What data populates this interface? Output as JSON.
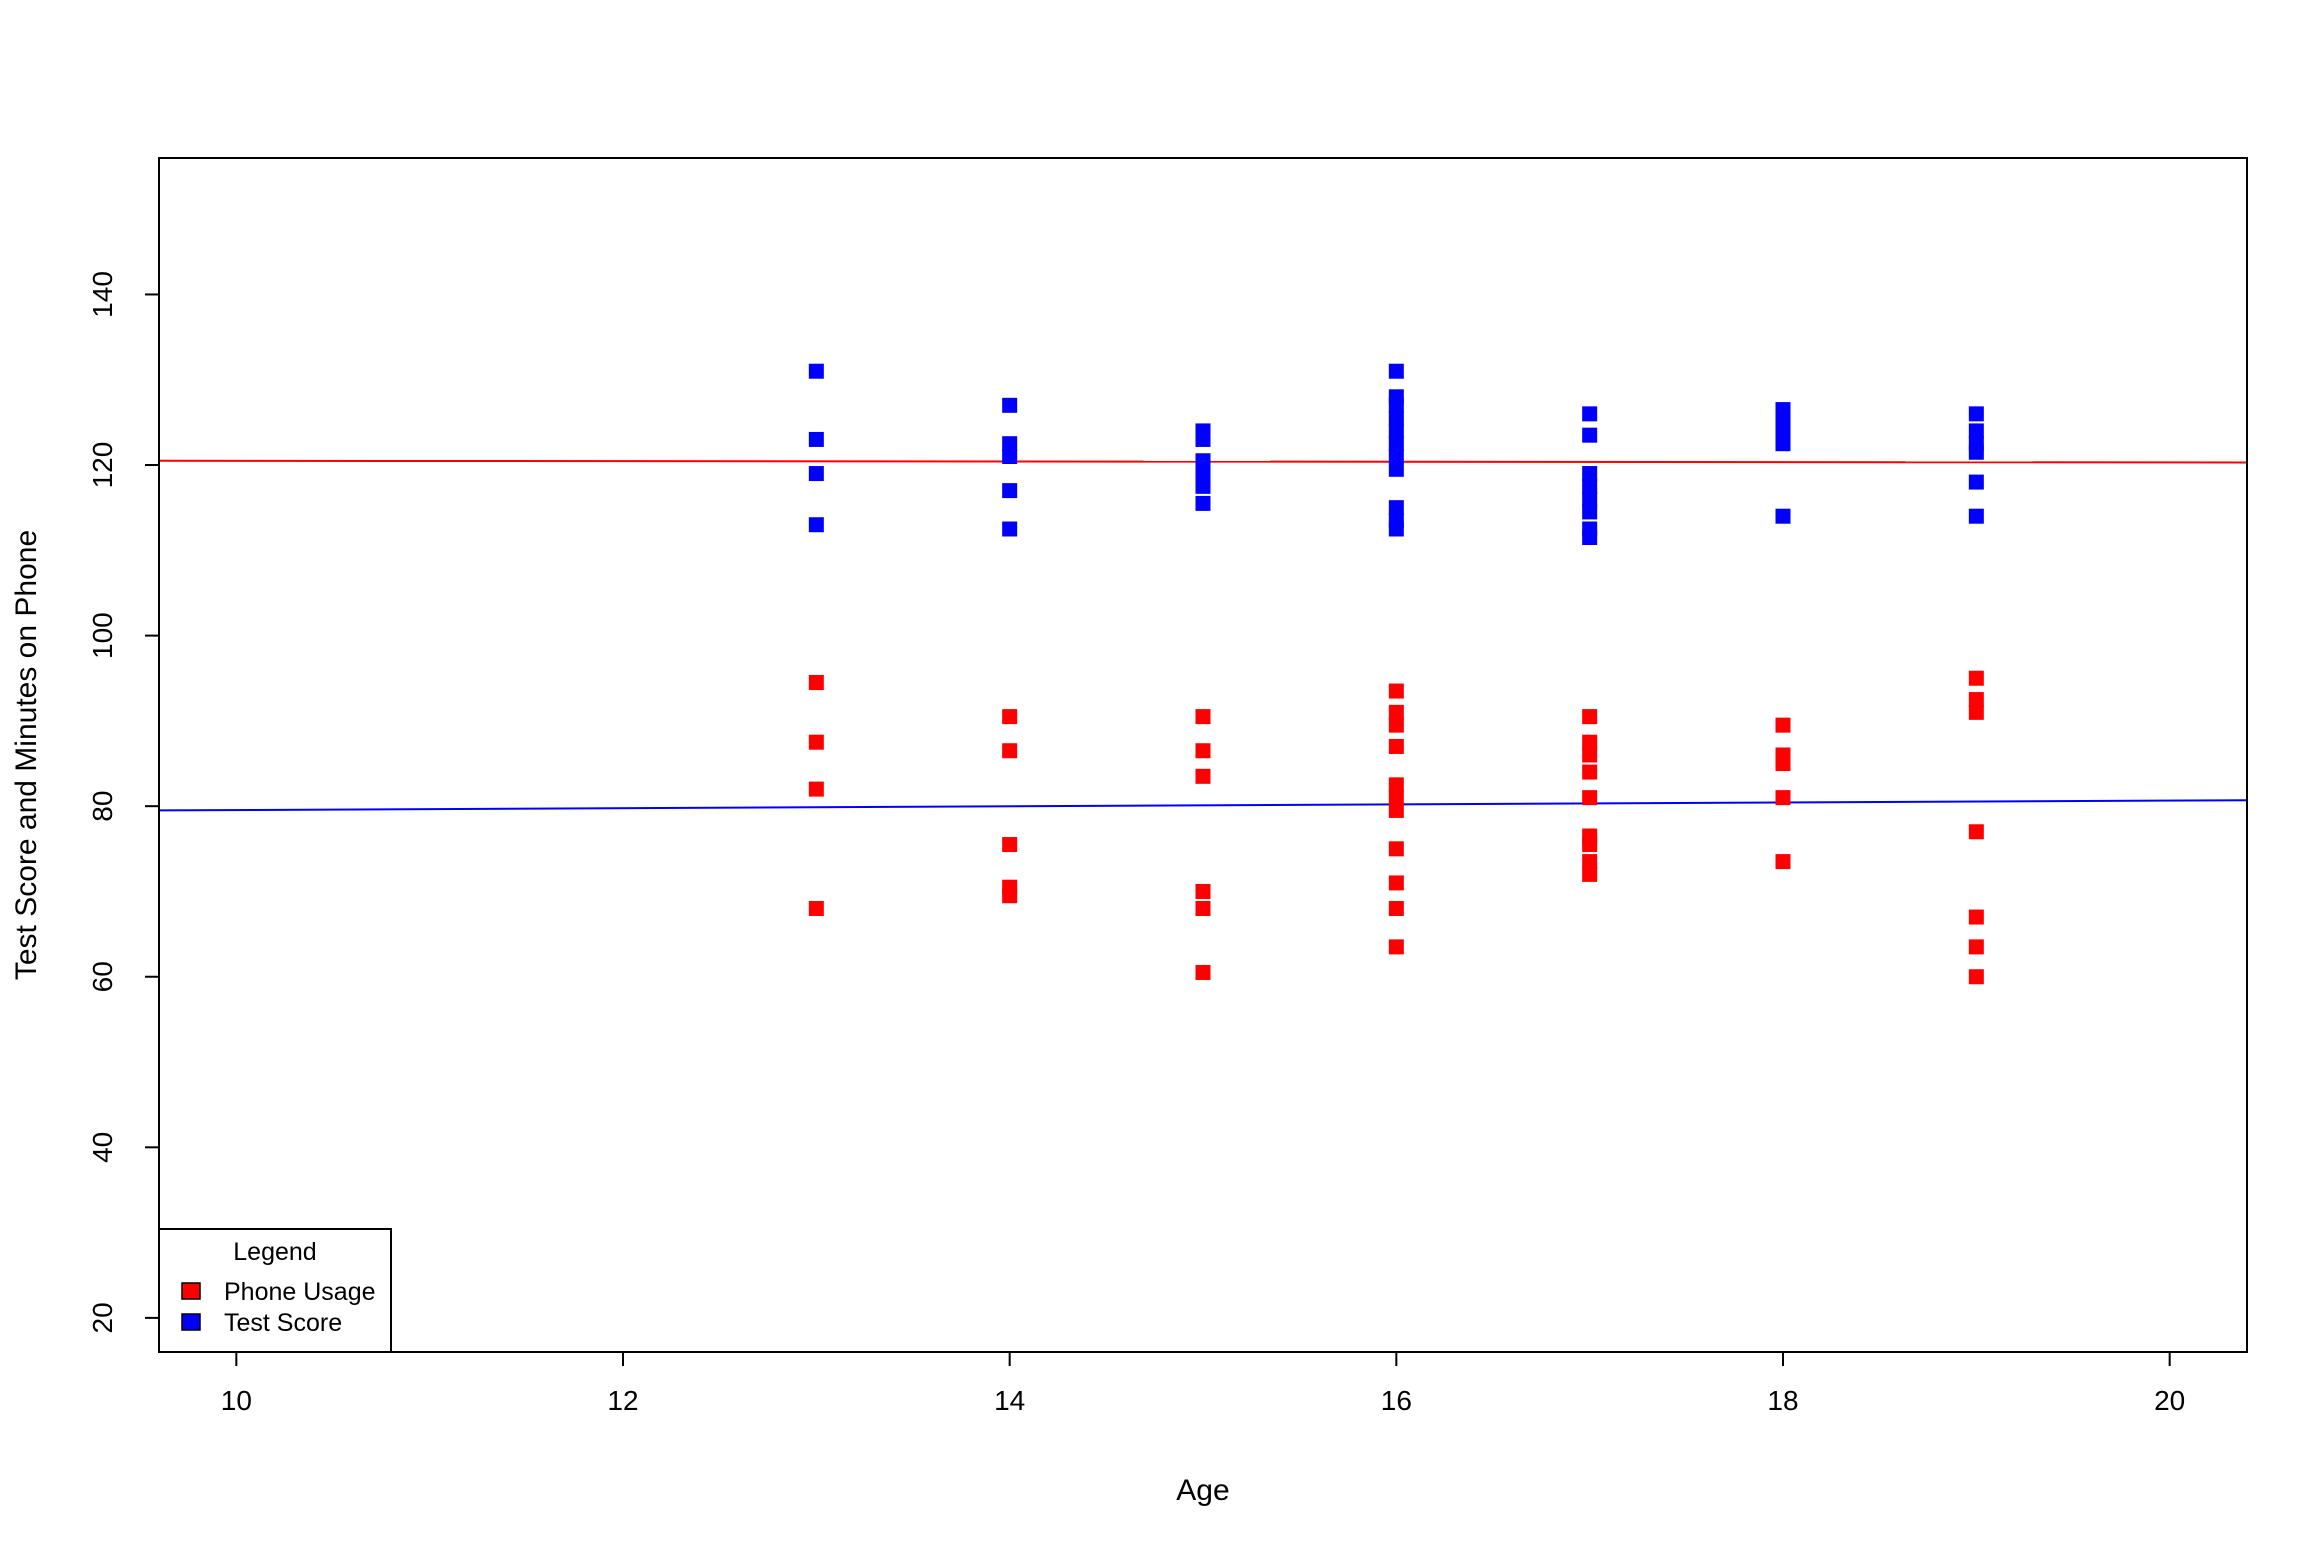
{
  "chart_data": {
    "type": "scatter",
    "title": "",
    "xlabel": "Age",
    "ylabel": "Test Score and Minutes on Phone",
    "xlim": [
      9.6,
      20.4
    ],
    "ylim": [
      16,
      156
    ],
    "x_ticks": [
      10,
      12,
      14,
      16,
      18,
      20
    ],
    "y_ticks": [
      20,
      40,
      60,
      80,
      100,
      120,
      140
    ],
    "grid": false,
    "legend": {
      "title": "Legend",
      "position": "bottom-left",
      "entries": [
        {
          "label": "Phone Usage",
          "color": "#ff0000"
        },
        {
          "label": "Test Score",
          "color": "#0000ff"
        }
      ]
    },
    "series": [
      {
        "name": "Phone Usage",
        "color": "#ff0000",
        "marker": "square",
        "points": [
          [
            13,
            94.5
          ],
          [
            13,
            87.5
          ],
          [
            13,
            82
          ],
          [
            13,
            68
          ],
          [
            14,
            90.5
          ],
          [
            14,
            86.5
          ],
          [
            14,
            75.5
          ],
          [
            14,
            70.5
          ],
          [
            14,
            69.5
          ],
          [
            15,
            90.5
          ],
          [
            15,
            86.5
          ],
          [
            15,
            83.5
          ],
          [
            15,
            70
          ],
          [
            15,
            68
          ],
          [
            15,
            60.5
          ],
          [
            16,
            93.5
          ],
          [
            16,
            91
          ],
          [
            16,
            89.5
          ],
          [
            16,
            87
          ],
          [
            16,
            82.5
          ],
          [
            16,
            81
          ],
          [
            16,
            79.5
          ],
          [
            16,
            75
          ],
          [
            16,
            71
          ],
          [
            16,
            68
          ],
          [
            16,
            63.5
          ],
          [
            17,
            90.5
          ],
          [
            17,
            87.5
          ],
          [
            17,
            86
          ],
          [
            17,
            84
          ],
          [
            17,
            81
          ],
          [
            17,
            76.5
          ],
          [
            17,
            75.5
          ],
          [
            17,
            73.5
          ],
          [
            17,
            72
          ],
          [
            18,
            89.5
          ],
          [
            18,
            86
          ],
          [
            18,
            85
          ],
          [
            18,
            81
          ],
          [
            18,
            73.5
          ],
          [
            19,
            95
          ],
          [
            19,
            92.5
          ],
          [
            19,
            91
          ],
          [
            19,
            77
          ],
          [
            19,
            67
          ],
          [
            19,
            63.5
          ],
          [
            19,
            60
          ]
        ]
      },
      {
        "name": "Test Score",
        "color": "#0000ff",
        "marker": "square",
        "points": [
          [
            13,
            131
          ],
          [
            13,
            123
          ],
          [
            13,
            119
          ],
          [
            13,
            113
          ],
          [
            14,
            127
          ],
          [
            14,
            122.5
          ],
          [
            14,
            121
          ],
          [
            14,
            117
          ],
          [
            14,
            112.5
          ],
          [
            15,
            124
          ],
          [
            15,
            123
          ],
          [
            15,
            120.5
          ],
          [
            15,
            119
          ],
          [
            15,
            117.5
          ],
          [
            15,
            115.5
          ],
          [
            16,
            131
          ],
          [
            16,
            128
          ],
          [
            16,
            127
          ],
          [
            16,
            125.5
          ],
          [
            16,
            124
          ],
          [
            16,
            122.5
          ],
          [
            16,
            121
          ],
          [
            16,
            119.5
          ],
          [
            16,
            115
          ],
          [
            16,
            113.5
          ],
          [
            16,
            112.5
          ],
          [
            17,
            126
          ],
          [
            17,
            123.5
          ],
          [
            17,
            119
          ],
          [
            17,
            117.5
          ],
          [
            17,
            116
          ],
          [
            17,
            114.5
          ],
          [
            17,
            112.5
          ],
          [
            17,
            111.5
          ],
          [
            18,
            126.5
          ],
          [
            18,
            125
          ],
          [
            18,
            123.5
          ],
          [
            18,
            122.5
          ],
          [
            18,
            114
          ],
          [
            19,
            126
          ],
          [
            19,
            124
          ],
          [
            19,
            122.5
          ],
          [
            19,
            121.5
          ],
          [
            19,
            118
          ],
          [
            19,
            114
          ]
        ]
      }
    ],
    "trend_lines": [
      {
        "series": "Phone Usage",
        "color": "#ff0000",
        "x": [
          9.6,
          20.4
        ],
        "y": [
          120.5,
          120.3
        ]
      },
      {
        "series": "Test Score",
        "color": "#0000ff",
        "x": [
          9.6,
          20.4
        ],
        "y": [
          79.5,
          80.7
        ]
      }
    ]
  }
}
